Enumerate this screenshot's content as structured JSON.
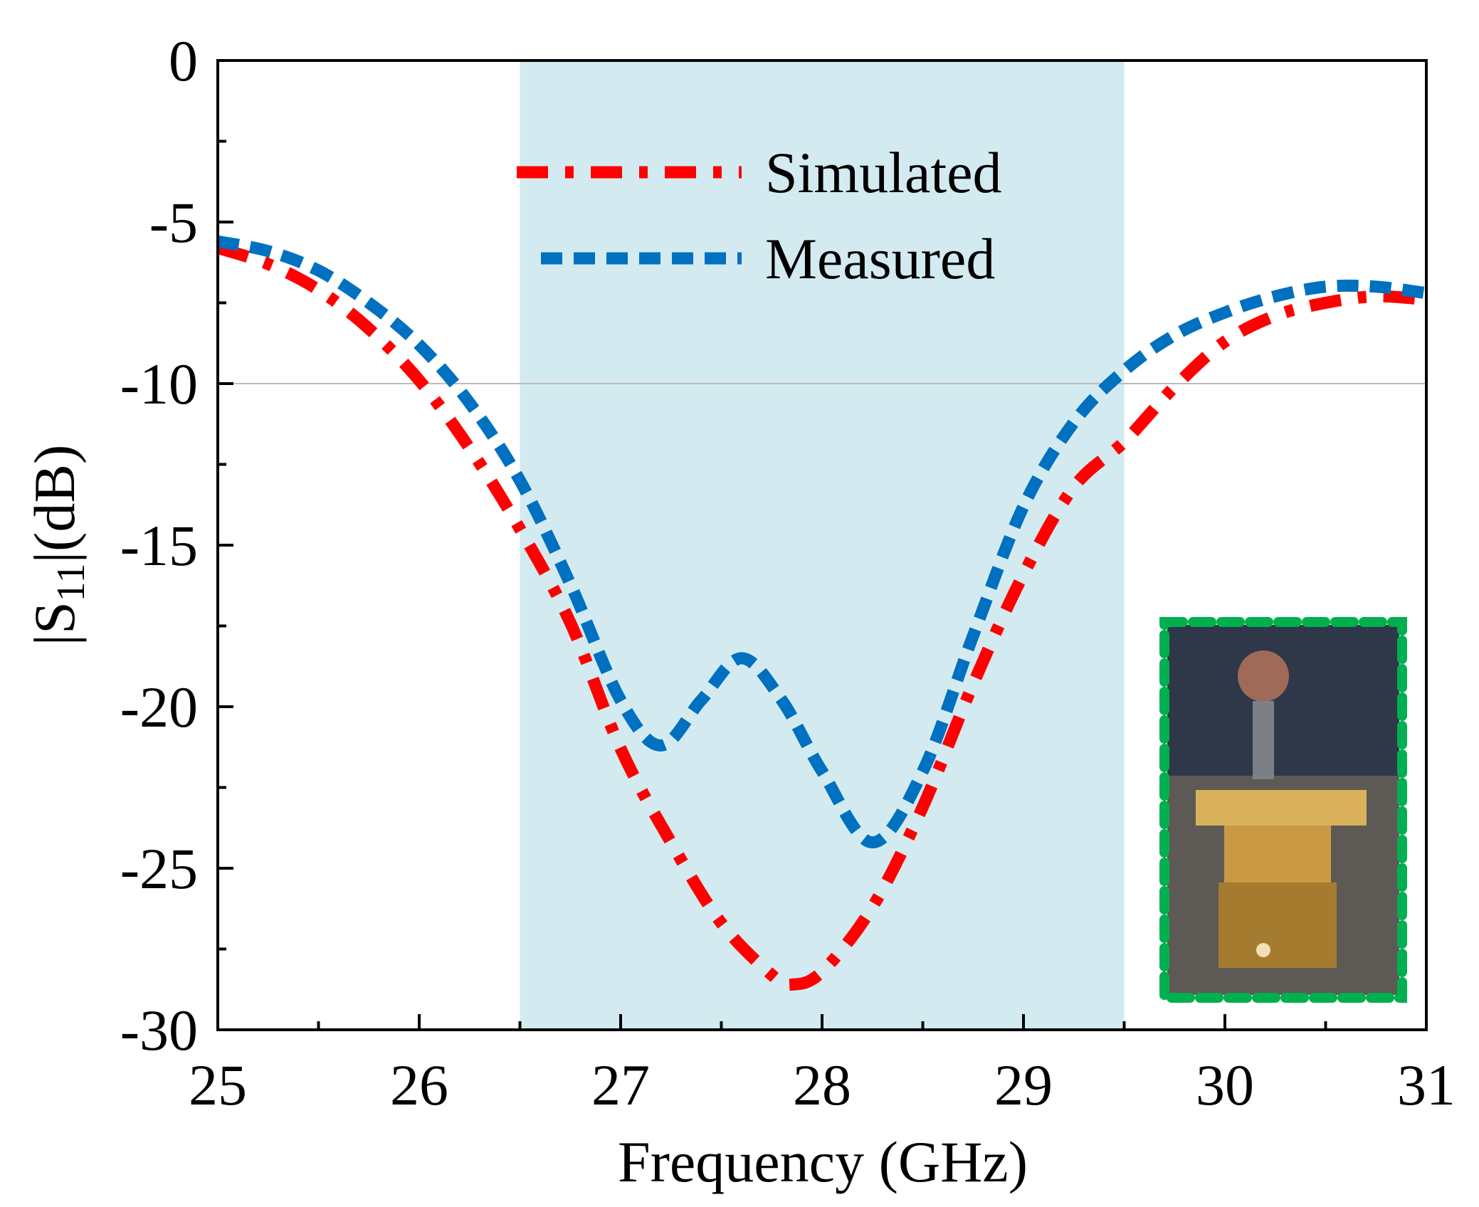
{
  "chart_data": {
    "type": "line",
    "xlabel": "Frequency (GHz)",
    "ylabel": [
      "|S",
      "11",
      "|(dB)"
    ],
    "xlim": [
      25,
      31
    ],
    "ylim": [
      -30,
      0
    ],
    "xticks": [
      25,
      26,
      27,
      28,
      29,
      30,
      31
    ],
    "yticks": [
      -30,
      -25,
      -20,
      -15,
      -10,
      -5,
      0
    ],
    "xticks_minor": [
      25.5,
      26.5,
      27.5,
      28.5,
      29.5,
      30.5
    ],
    "yticks_minor": [
      -27.5,
      -22.5,
      -17.5,
      -12.5,
      -7.5,
      -2.5
    ],
    "band": [
      26.5,
      29.5
    ],
    "band_color": "#d3ebf0",
    "reference_line": -10,
    "legend": "top-center",
    "series": [
      {
        "name": "Simulated",
        "color": "#ff0000",
        "dash": "dashdot",
        "x": [
          25,
          25.25,
          25.5,
          25.75,
          26,
          26.25,
          26.5,
          26.75,
          27,
          27.25,
          27.5,
          27.75,
          27.85,
          28,
          28.25,
          28.5,
          28.75,
          29,
          29.25,
          29.5,
          29.75,
          30,
          30.25,
          30.5,
          30.75,
          31
        ],
        "values": [
          -5.8,
          -6.3,
          -7.1,
          -8.3,
          -9.9,
          -12,
          -14.5,
          -17.4,
          -21.3,
          -24.2,
          -26.7,
          -28.3,
          -28.6,
          -28.2,
          -26.2,
          -23.1,
          -19.3,
          -15.9,
          -13.2,
          -11.8,
          -10.1,
          -8.7,
          -7.9,
          -7.5,
          -7.3,
          -7.4
        ]
      },
      {
        "name": "Measured",
        "color": "#0070c0",
        "dash": "dash",
        "x": [
          25,
          25.25,
          25.5,
          25.75,
          26,
          26.25,
          26.5,
          26.75,
          27,
          27.2,
          27.4,
          27.6,
          27.8,
          28,
          28.25,
          28.5,
          28.75,
          29,
          29.25,
          29.5,
          29.75,
          30,
          30.25,
          30.5,
          30.75,
          31
        ],
        "values": [
          -5.6,
          -5.9,
          -6.5,
          -7.5,
          -8.8,
          -10.6,
          -13,
          -16.2,
          -19.8,
          -21.2,
          -19.8,
          -18.5,
          -19.8,
          -22,
          -24.2,
          -22,
          -17.8,
          -13.8,
          -11.2,
          -9.6,
          -8.5,
          -7.8,
          -7.3,
          -7,
          -7,
          -7.2
        ]
      }
    ]
  }
}
